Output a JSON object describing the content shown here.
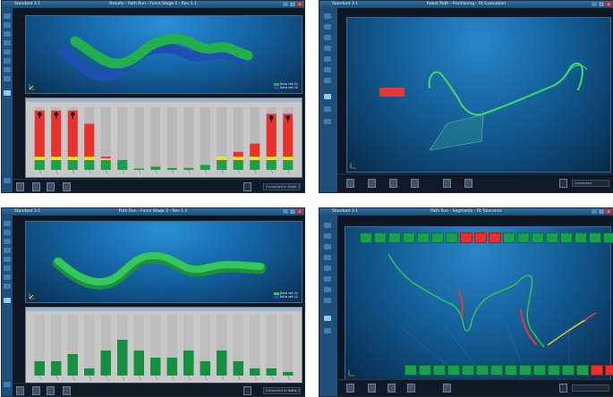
{
  "screens": {
    "top_left": {
      "app_label": "Standard 3.1",
      "title": "Results - Path Run - Force Stage 1 - Rev 1.1",
      "status_text": "Connected to Robot 1.1",
      "legend": [
        "Data set 01",
        "Data set 02"
      ],
      "bar_chart": {
        "type": "stacked-bar",
        "stack_colors": [
          "#18a14a",
          "#f2e416",
          "#e8322c"
        ],
        "bars": [
          {
            "green": 3,
            "yellow": 1,
            "red": 14,
            "alert": true
          },
          {
            "green": 3,
            "yellow": 1,
            "red": 14,
            "alert": true
          },
          {
            "green": 3,
            "yellow": 1,
            "red": 14,
            "alert": true
          },
          {
            "green": 3,
            "yellow": 1,
            "red": 10,
            "alert": false
          },
          {
            "green": 3,
            "yellow": 0.5,
            "red": 0.5,
            "alert": false
          },
          {
            "green": 3,
            "yellow": 0,
            "red": 0,
            "alert": false
          },
          {
            "green": 0.4,
            "yellow": 0,
            "red": 0,
            "alert": false
          },
          {
            "green": 1,
            "yellow": 0,
            "red": 0,
            "alert": false
          },
          {
            "green": 0.6,
            "yellow": 0,
            "red": 0,
            "alert": false
          },
          {
            "green": 0.6,
            "yellow": 0,
            "red": 0,
            "alert": false
          },
          {
            "green": 1.5,
            "yellow": 0,
            "red": 0,
            "alert": false
          },
          {
            "green": 3,
            "yellow": 1,
            "red": 0,
            "alert": false
          },
          {
            "green": 3,
            "yellow": 1,
            "red": 1.5,
            "alert": false
          },
          {
            "green": 3,
            "yellow": 1,
            "red": 4,
            "alert": false
          },
          {
            "green": 3,
            "yellow": 1,
            "red": 13,
            "alert": true
          },
          {
            "green": 3,
            "yellow": 1,
            "red": 13,
            "alert": true
          }
        ],
        "ymax": 19
      }
    },
    "top_right": {
      "app_label": "Standard 3.1",
      "title": "Robot Path - Positioning - Fit Evaluation",
      "status_text": "Connected"
    },
    "bottom_left": {
      "app_label": "Standard 3.1",
      "title": "Path Run - Force Stage 2 - Rev 1.1",
      "status_text": "Connected to Robot 1.1",
      "legend": [
        "Data set 01",
        "Data set 02"
      ],
      "bar_chart": {
        "type": "bar",
        "values": [
          4,
          4,
          6,
          2,
          7,
          10,
          7,
          5,
          5,
          7,
          4,
          7,
          4,
          2,
          2,
          1
        ],
        "ymax": 17,
        "color": "#159040"
      }
    },
    "bottom_right": {
      "app_label": "Standard 3.1",
      "title": "Path Run - Segments - Fit Tolerance",
      "status_text": "",
      "segments_top": [
        "g",
        "g",
        "g",
        "g",
        "g",
        "g",
        "g",
        "r",
        "r",
        "r",
        "g",
        "g",
        "g",
        "g",
        "g",
        "g",
        "g",
        "g",
        "g"
      ],
      "segments_bottom": [
        "g",
        "g",
        "g",
        "g",
        "g",
        "g",
        "g",
        "g",
        "g",
        "g",
        "g",
        "g",
        "g",
        "r",
        "r"
      ]
    }
  },
  "colors": {
    "accent": "#1f4f78",
    "ok": "#18a14a",
    "warn": "#f2e416",
    "error": "#e5312d",
    "path_green": "#2fbf55",
    "path_blue": "#2c5fbf"
  }
}
